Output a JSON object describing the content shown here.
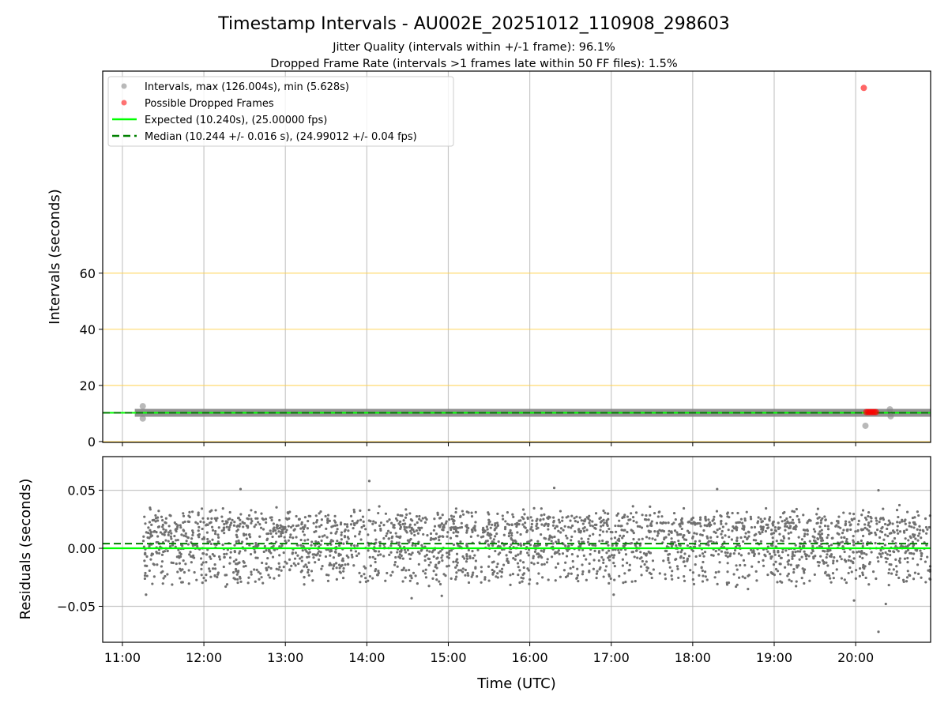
{
  "chart_data": [
    {
      "type": "scatter",
      "title": "Timestamp Intervals - AU002E_20251012_110908_298603",
      "subtitle_lines": [
        "Jitter Quality (intervals within +/-1 frame): 96.1%",
        "Dropped Frame Rate (intervals >1 frames late within 50 FF files): 1.5%"
      ],
      "ylabel": "Intervals (seconds)",
      "ylim": [
        -0.3,
        132
      ],
      "xlim_hours": [
        10.758,
        20.92
      ],
      "yticks": [
        0,
        20,
        40,
        60
      ],
      "ytick_labels": [
        "0",
        "20",
        "40",
        "60"
      ],
      "legend": {
        "placement": "top-left",
        "entries": [
          {
            "label": "Intervals, max (126.004s), min (5.628s)",
            "color": "#808080",
            "kind": "marker"
          },
          {
            "label": "Possible Dropped Frames",
            "color": "#ff0000",
            "kind": "marker"
          },
          {
            "label": "Expected (10.240s), (25.00000 fps)",
            "color": "#00ff00",
            "kind": "line"
          },
          {
            "label": "Median (10.244 +/- 0.016 s), (24.99012 +/- 0.04 fps)",
            "color": "#008000",
            "kind": "dashed"
          }
        ]
      },
      "expected": 10.24,
      "median": 10.244,
      "interval_band": {
        "x_start_hours": 11.152,
        "x_end_hours": 20.92,
        "value": 10.24
      },
      "interval_outliers": [
        [
          11.25,
          12.6
        ],
        [
          11.25,
          8.2
        ],
        [
          20.12,
          5.628
        ],
        [
          20.42,
          11.5
        ],
        [
          20.43,
          9.0
        ]
      ],
      "dropped_frames": [
        [
          20.1,
          126.004
        ],
        [
          20.13,
          10.5
        ],
        [
          20.15,
          10.5
        ],
        [
          20.17,
          10.5
        ],
        [
          20.19,
          10.5
        ],
        [
          20.21,
          10.5
        ],
        [
          20.23,
          10.5
        ],
        [
          20.25,
          10.5
        ]
      ]
    },
    {
      "type": "scatter",
      "ylabel": "Residuals (seconds)",
      "xlabel": "Time (UTC)",
      "ylim": [
        -0.081,
        0.079
      ],
      "xlim_hours": [
        10.758,
        20.92
      ],
      "yticks": [
        0.05,
        0,
        -0.05
      ],
      "ytick_labels": [
        "0.05",
        "0.00",
        "−0.05"
      ],
      "xticks_hours": [
        11,
        12,
        13,
        14,
        15,
        16,
        17,
        18,
        19,
        20
      ],
      "xtick_labels": [
        "11:00",
        "12:00",
        "13:00",
        "14:00",
        "15:00",
        "16:00",
        "17:00",
        "18:00",
        "19:00",
        "20:00"
      ],
      "expected_residual": 0.0,
      "median_residual": 0.004,
      "residual_modes": [
        0.02,
        0.0,
        -0.02
      ],
      "residual_point_count": 2700,
      "residual_outliers": [
        [
          11.29,
          -0.04
        ],
        [
          14.03,
          0.058
        ],
        [
          14.55,
          -0.043
        ],
        [
          14.92,
          -0.041
        ],
        [
          17.03,
          -0.04
        ],
        [
          19.98,
          -0.045
        ],
        [
          20.28,
          -0.072
        ],
        [
          20.37,
          -0.048
        ],
        [
          20.28,
          0.05
        ],
        [
          12.45,
          0.051
        ],
        [
          16.3,
          0.052
        ],
        [
          18.3,
          0.051
        ]
      ]
    }
  ]
}
